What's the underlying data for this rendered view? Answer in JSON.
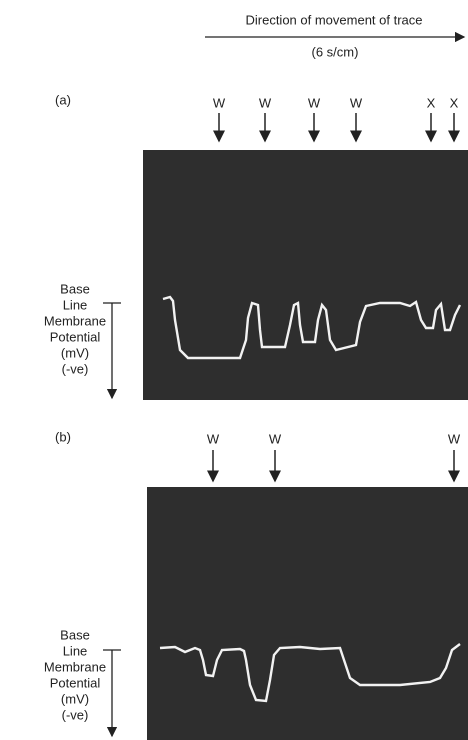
{
  "header": {
    "direction": "Direction of movement of trace",
    "scale": "(6 s/cm)"
  },
  "panels": [
    {
      "label": "(a)",
      "markers": [
        "W",
        "W",
        "W",
        "W",
        "X",
        "X"
      ],
      "axis_labels": [
        "Base",
        "Line",
        "Membrane",
        "Potential",
        "(mV)",
        "(-ve)"
      ]
    },
    {
      "label": "(b)",
      "markers": [
        "W",
        "W",
        "W"
      ],
      "axis_labels": [
        "Base",
        "Line",
        "Membrane",
        "Potential",
        "(mV)",
        "(-ve)"
      ]
    }
  ]
}
